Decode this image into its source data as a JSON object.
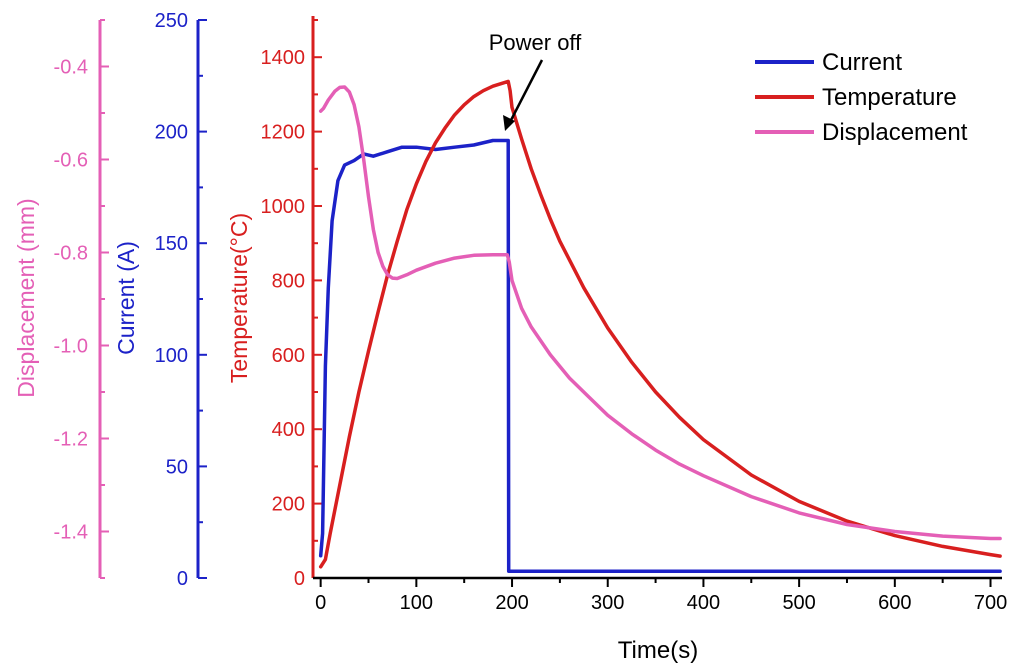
{
  "chart_data": {
    "type": "line",
    "title": "",
    "xlabel": "Time(s)",
    "xlim": [
      -8,
      712
    ],
    "x_ticks": [
      "0",
      "100",
      "200",
      "300",
      "400",
      "500",
      "600",
      "700"
    ],
    "axes": {
      "temperature": {
        "label": "Temperature(°C)",
        "ylim": [
          0,
          1500
        ],
        "ticks": [
          "0",
          "200",
          "400",
          "600",
          "800",
          "1000",
          "1200",
          "1400"
        ],
        "color": "#d81f1f"
      },
      "current": {
        "label": "Current (A)",
        "ylim": [
          0,
          250
        ],
        "ticks": [
          "0",
          "50",
          "100",
          "150",
          "200",
          "250"
        ],
        "color": "#1c22c8"
      },
      "displacement": {
        "label": "Displacement (mm)",
        "ylim": [
          -1.5,
          -0.3
        ],
        "ticks": [
          "-1.4",
          "-1.2",
          "-1.0",
          "-0.8",
          "-0.6",
          "-0.4"
        ],
        "color": "#e45fb6"
      }
    },
    "series": [
      {
        "name": "Current",
        "axis": "current",
        "color": "#1c22c8",
        "x": [
          0,
          2,
          5,
          8,
          12,
          18,
          25,
          35,
          45,
          55,
          70,
          85,
          100,
          120,
          140,
          160,
          180,
          194,
          196,
          196.5,
          210,
          300,
          400,
          500,
          600,
          710
        ],
        "y": [
          10,
          20,
          95,
          130,
          160,
          178,
          185,
          187,
          190,
          189,
          191,
          193,
          193,
          192,
          193,
          194,
          196,
          196,
          196,
          3,
          3,
          3,
          3,
          3,
          3,
          3
        ]
      },
      {
        "name": "Temperature",
        "axis": "temperature",
        "color": "#d81f1f",
        "x": [
          0,
          5,
          10,
          20,
          30,
          40,
          50,
          60,
          70,
          80,
          90,
          100,
          110,
          120,
          130,
          140,
          150,
          160,
          170,
          180,
          190,
          196,
          198,
          200,
          210,
          220,
          230,
          240,
          250,
          275,
          300,
          325,
          350,
          375,
          400,
          450,
          500,
          550,
          600,
          650,
          700,
          710
        ],
        "y": [
          30,
          50,
          120,
          250,
          380,
          500,
          610,
          715,
          815,
          905,
          990,
          1060,
          1120,
          1170,
          1210,
          1245,
          1272,
          1294,
          1310,
          1322,
          1330,
          1335,
          1310,
          1265,
          1180,
          1100,
          1030,
          965,
          905,
          780,
          672,
          580,
          500,
          432,
          372,
          277,
          206,
          153,
          114,
          85,
          63,
          59
        ]
      },
      {
        "name": "Displacement",
        "axis": "displacement",
        "color": "#e45fb6",
        "x": [
          0,
          3,
          8,
          15,
          20,
          25,
          30,
          35,
          40,
          45,
          50,
          55,
          60,
          65,
          70,
          75,
          80,
          90,
          100,
          120,
          140,
          160,
          180,
          195,
          197,
          200,
          210,
          220,
          240,
          260,
          280,
          300,
          325,
          350,
          375,
          400,
          450,
          500,
          550,
          600,
          650,
          700,
          710
        ],
        "y": [
          -0.496,
          -0.49,
          -0.472,
          -0.453,
          -0.445,
          -0.444,
          -0.455,
          -0.482,
          -0.53,
          -0.6,
          -0.68,
          -0.75,
          -0.8,
          -0.83,
          -0.848,
          -0.855,
          -0.856,
          -0.848,
          -0.838,
          -0.823,
          -0.812,
          -0.806,
          -0.805,
          -0.805,
          -0.82,
          -0.86,
          -0.92,
          -0.96,
          -1.02,
          -1.07,
          -1.11,
          -1.15,
          -1.19,
          -1.225,
          -1.255,
          -1.28,
          -1.325,
          -1.36,
          -1.385,
          -1.4,
          -1.41,
          -1.415,
          -1.415
        ]
      }
    ],
    "legend": {
      "position": "top-right",
      "entries": [
        "Current",
        "Temperature",
        "Displacement"
      ]
    },
    "annotations": [
      {
        "text": "Power off",
        "target_x": 196,
        "target_temperature": 1200
      }
    ]
  }
}
